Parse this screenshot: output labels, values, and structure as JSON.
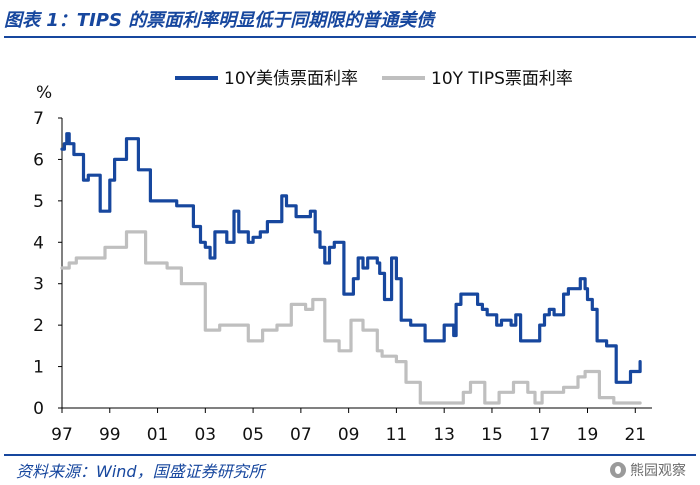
{
  "title": "图表 1：TIPS 的票面利率明显低于同期限的普通美债",
  "source": "资料来源：Wind，国盛证券研究所",
  "watermark": "熊园观察",
  "colors": {
    "treasury": "#17479E",
    "tips": "#BFBFBF",
    "accent": "#17479E"
  },
  "chart_data": {
    "type": "line",
    "title": "TIPS 的票面利率明显低于同期限的普通美债",
    "xlabel": "",
    "ylabel": "%",
    "xlim": [
      1997.0,
      2021.7
    ],
    "ylim": [
      0,
      7
    ],
    "yticks": [
      0,
      1,
      2,
      3,
      4,
      5,
      6,
      7
    ],
    "xticks": [
      {
        "label": "97",
        "value": 1997
      },
      {
        "label": "99",
        "value": 1999
      },
      {
        "label": "01",
        "value": 2001
      },
      {
        "label": "03",
        "value": 2003
      },
      {
        "label": "05",
        "value": 2005
      },
      {
        "label": "07",
        "value": 2007
      },
      {
        "label": "09",
        "value": 2009
      },
      {
        "label": "11",
        "value": 2011
      },
      {
        "label": "13",
        "value": 2013
      },
      {
        "label": "15",
        "value": 2015
      },
      {
        "label": "17",
        "value": 2017
      },
      {
        "label": "19",
        "value": 2019
      },
      {
        "label": "21",
        "value": 2021
      }
    ],
    "legend_position": "top",
    "series": [
      {
        "name": "10Y美债票面利率",
        "color": "#17479E",
        "points": [
          [
            1997.0,
            6.25
          ],
          [
            1997.1,
            6.38
          ],
          [
            1997.2,
            6.62
          ],
          [
            1997.3,
            6.38
          ],
          [
            1997.5,
            6.12
          ],
          [
            1997.7,
            6.12
          ],
          [
            1997.9,
            5.5
          ],
          [
            1998.1,
            5.62
          ],
          [
            1998.4,
            5.62
          ],
          [
            1998.6,
            4.75
          ],
          [
            1998.8,
            4.75
          ],
          [
            1999.0,
            5.5
          ],
          [
            1999.2,
            6.0
          ],
          [
            1999.5,
            6.0
          ],
          [
            1999.7,
            6.5
          ],
          [
            2000.0,
            6.5
          ],
          [
            2000.2,
            5.75
          ],
          [
            2000.5,
            5.75
          ],
          [
            2000.7,
            5.0
          ],
          [
            2001.0,
            5.0
          ],
          [
            2001.3,
            5.0
          ],
          [
            2001.5,
            5.0
          ],
          [
            2001.8,
            4.88
          ],
          [
            2002.0,
            4.88
          ],
          [
            2002.2,
            4.88
          ],
          [
            2002.5,
            4.38
          ],
          [
            2002.8,
            4.0
          ],
          [
            2003.0,
            3.88
          ],
          [
            2003.2,
            3.62
          ],
          [
            2003.4,
            4.25
          ],
          [
            2003.6,
            4.25
          ],
          [
            2003.8,
            4.25
          ],
          [
            2003.9,
            4.0
          ],
          [
            2004.0,
            4.0
          ],
          [
            2004.2,
            4.75
          ],
          [
            2004.4,
            4.25
          ],
          [
            2004.6,
            4.25
          ],
          [
            2004.8,
            4.0
          ],
          [
            2005.0,
            4.12
          ],
          [
            2005.3,
            4.25
          ],
          [
            2005.6,
            4.5
          ],
          [
            2005.8,
            4.5
          ],
          [
            2006.0,
            4.5
          ],
          [
            2006.2,
            5.12
          ],
          [
            2006.4,
            4.88
          ],
          [
            2006.6,
            4.88
          ],
          [
            2006.8,
            4.62
          ],
          [
            2007.0,
            4.62
          ],
          [
            2007.2,
            4.62
          ],
          [
            2007.4,
            4.75
          ],
          [
            2007.6,
            4.25
          ],
          [
            2007.8,
            3.88
          ],
          [
            2008.0,
            3.5
          ],
          [
            2008.2,
            3.88
          ],
          [
            2008.4,
            4.0
          ],
          [
            2008.6,
            4.0
          ],
          [
            2008.8,
            2.75
          ],
          [
            2009.0,
            2.75
          ],
          [
            2009.2,
            3.12
          ],
          [
            2009.4,
            3.62
          ],
          [
            2009.6,
            3.38
          ],
          [
            2009.8,
            3.62
          ],
          [
            2010.0,
            3.62
          ],
          [
            2010.2,
            3.5
          ],
          [
            2010.3,
            3.25
          ],
          [
            2010.5,
            2.62
          ],
          [
            2010.7,
            2.62
          ],
          [
            2010.8,
            3.62
          ],
          [
            2010.9,
            3.62
          ],
          [
            2011.0,
            3.12
          ],
          [
            2011.2,
            2.12
          ],
          [
            2011.4,
            2.12
          ],
          [
            2011.6,
            2.0
          ],
          [
            2011.8,
            2.0
          ],
          [
            2012.0,
            2.0
          ],
          [
            2012.2,
            1.62
          ],
          [
            2012.4,
            1.62
          ],
          [
            2012.6,
            1.62
          ],
          [
            2012.8,
            1.62
          ],
          [
            2013.0,
            2.0
          ],
          [
            2013.2,
            2.0
          ],
          [
            2013.4,
            1.75
          ],
          [
            2013.5,
            2.5
          ],
          [
            2013.7,
            2.75
          ],
          [
            2014.0,
            2.75
          ],
          [
            2014.2,
            2.75
          ],
          [
            2014.4,
            2.5
          ],
          [
            2014.6,
            2.38
          ],
          [
            2014.8,
            2.25
          ],
          [
            2015.0,
            2.25
          ],
          [
            2015.2,
            2.0
          ],
          [
            2015.4,
            2.12
          ],
          [
            2015.6,
            2.12
          ],
          [
            2015.8,
            2.0
          ],
          [
            2016.0,
            2.25
          ],
          [
            2016.2,
            1.62
          ],
          [
            2016.4,
            1.62
          ],
          [
            2016.6,
            1.62
          ],
          [
            2016.8,
            1.62
          ],
          [
            2017.0,
            2.0
          ],
          [
            2017.2,
            2.25
          ],
          [
            2017.4,
            2.38
          ],
          [
            2017.6,
            2.25
          ],
          [
            2017.8,
            2.25
          ],
          [
            2018.0,
            2.75
          ],
          [
            2018.2,
            2.88
          ],
          [
            2018.4,
            2.88
          ],
          [
            2018.6,
            2.88
          ],
          [
            2018.7,
            3.12
          ],
          [
            2018.9,
            2.88
          ],
          [
            2019.0,
            2.62
          ],
          [
            2019.2,
            2.38
          ],
          [
            2019.4,
            1.62
          ],
          [
            2019.6,
            1.62
          ],
          [
            2019.8,
            1.5
          ],
          [
            2020.0,
            1.5
          ],
          [
            2020.2,
            0.62
          ],
          [
            2020.4,
            0.62
          ],
          [
            2020.6,
            0.62
          ],
          [
            2020.8,
            0.88
          ],
          [
            2021.0,
            0.88
          ],
          [
            2021.2,
            1.12
          ]
        ]
      },
      {
        "name": "10Y TIPS票面利率",
        "color": "#BFBFBF",
        "points": [
          [
            1997.0,
            3.38
          ],
          [
            1997.3,
            3.5
          ],
          [
            1997.6,
            3.62
          ],
          [
            1997.9,
            3.62
          ],
          [
            1998.2,
            3.62
          ],
          [
            1998.5,
            3.62
          ],
          [
            1998.8,
            3.88
          ],
          [
            1999.1,
            3.88
          ],
          [
            1999.4,
            3.88
          ],
          [
            1999.7,
            4.25
          ],
          [
            2000.0,
            4.25
          ],
          [
            2000.3,
            4.25
          ],
          [
            2000.5,
            3.5
          ],
          [
            2000.8,
            3.5
          ],
          [
            2001.1,
            3.5
          ],
          [
            2001.4,
            3.38
          ],
          [
            2001.7,
            3.38
          ],
          [
            2002.0,
            3.0
          ],
          [
            2002.4,
            3.0
          ],
          [
            2002.7,
            3.0
          ],
          [
            2003.0,
            1.88
          ],
          [
            2003.3,
            1.88
          ],
          [
            2003.6,
            2.0
          ],
          [
            2003.9,
            2.0
          ],
          [
            2004.2,
            2.0
          ],
          [
            2004.5,
            2.0
          ],
          [
            2004.8,
            1.62
          ],
          [
            2005.1,
            1.62
          ],
          [
            2005.4,
            1.88
          ],
          [
            2005.7,
            1.88
          ],
          [
            2006.0,
            2.0
          ],
          [
            2006.3,
            2.0
          ],
          [
            2006.6,
            2.5
          ],
          [
            2006.9,
            2.5
          ],
          [
            2007.2,
            2.38
          ],
          [
            2007.5,
            2.62
          ],
          [
            2007.8,
            2.62
          ],
          [
            2008.0,
            1.62
          ],
          [
            2008.3,
            1.62
          ],
          [
            2008.6,
            1.38
          ],
          [
            2008.9,
            1.38
          ],
          [
            2009.1,
            2.12
          ],
          [
            2009.3,
            2.12
          ],
          [
            2009.6,
            1.88
          ],
          [
            2009.9,
            1.88
          ],
          [
            2010.2,
            1.38
          ],
          [
            2010.4,
            1.25
          ],
          [
            2010.7,
            1.25
          ],
          [
            2011.0,
            1.12
          ],
          [
            2011.2,
            1.12
          ],
          [
            2011.4,
            0.62
          ],
          [
            2011.7,
            0.62
          ],
          [
            2012.0,
            0.12
          ],
          [
            2012.3,
            0.12
          ],
          [
            2012.6,
            0.12
          ],
          [
            2012.9,
            0.12
          ],
          [
            2013.2,
            0.12
          ],
          [
            2013.5,
            0.12
          ],
          [
            2013.8,
            0.38
          ],
          [
            2014.1,
            0.62
          ],
          [
            2014.4,
            0.62
          ],
          [
            2014.7,
            0.12
          ],
          [
            2015.0,
            0.12
          ],
          [
            2015.3,
            0.38
          ],
          [
            2015.6,
            0.38
          ],
          [
            2015.9,
            0.62
          ],
          [
            2016.2,
            0.62
          ],
          [
            2016.5,
            0.38
          ],
          [
            2016.8,
            0.12
          ],
          [
            2017.1,
            0.38
          ],
          [
            2017.4,
            0.38
          ],
          [
            2017.7,
            0.38
          ],
          [
            2018.0,
            0.5
          ],
          [
            2018.3,
            0.5
          ],
          [
            2018.6,
            0.75
          ],
          [
            2018.9,
            0.88
          ],
          [
            2019.2,
            0.88
          ],
          [
            2019.5,
            0.25
          ],
          [
            2019.8,
            0.25
          ],
          [
            2020.1,
            0.12
          ],
          [
            2020.4,
            0.12
          ],
          [
            2020.7,
            0.12
          ],
          [
            2021.0,
            0.12
          ],
          [
            2021.2,
            0.12
          ]
        ]
      }
    ]
  }
}
